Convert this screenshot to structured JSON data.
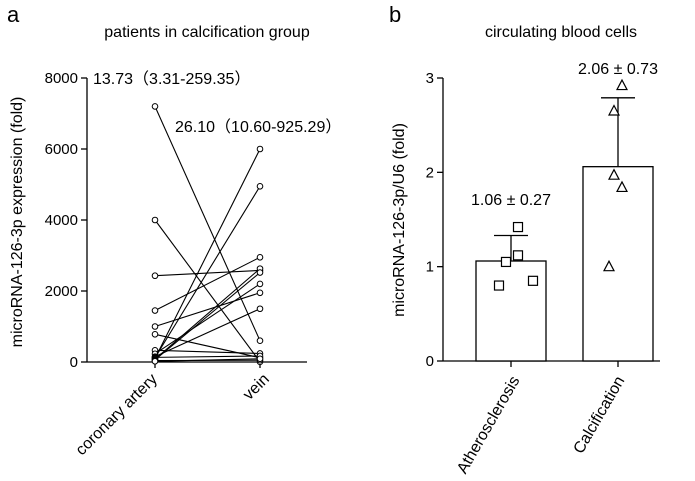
{
  "chart_data": [
    {
      "panel": "a",
      "type": "line",
      "title": "patients in calcification group",
      "ylabel": "microRNA-126-3p expression (fold)",
      "xlabel": "",
      "categories": [
        "coronary artery",
        "vein"
      ],
      "ylim": [
        0,
        8000
      ],
      "yticks": [
        "0",
        "2000",
        "4000",
        "6000",
        "8000"
      ],
      "grid": false,
      "annotations": [
        "13.73（3.31-259.35）",
        "26.10（10.60-925.29）"
      ],
      "pairs": [
        [
          7200,
          600
        ],
        [
          4000,
          5
        ],
        [
          2430,
          2580
        ],
        [
          1450,
          2950
        ],
        [
          1000,
          1950
        ],
        [
          780,
          120
        ],
        [
          330,
          240
        ],
        [
          230,
          2200
        ],
        [
          150,
          1500
        ],
        [
          130,
          170
        ],
        [
          120,
          4950
        ],
        [
          100,
          6000
        ],
        [
          80,
          2630
        ],
        [
          60,
          2520
        ],
        [
          40,
          50
        ],
        [
          20,
          90
        ]
      ]
    },
    {
      "panel": "b",
      "type": "bar",
      "title": "circulating blood cells",
      "ylabel": "microRNA-126-3p/U6 (fold)",
      "xlabel": "",
      "categories": [
        "Atherosclerosis",
        "Calcification"
      ],
      "ylim": [
        0,
        3
      ],
      "yticks": [
        "0",
        "1",
        "2",
        "3"
      ],
      "grid": false,
      "series": [
        {
          "name": "Atherosclerosis",
          "mean": 1.06,
          "sd": 0.27,
          "label": "1.06 ± 0.27",
          "marker": "square",
          "points": [
            0.8,
            1.12,
            0.85,
            1.42,
            1.05
          ]
        },
        {
          "name": "Calcification",
          "mean": 2.06,
          "sd": 0.73,
          "label": "2.06 ± 0.73",
          "marker": "triangle",
          "points": [
            2.92,
            2.65,
            1.84,
            1.97,
            1.0
          ]
        }
      ]
    }
  ]
}
